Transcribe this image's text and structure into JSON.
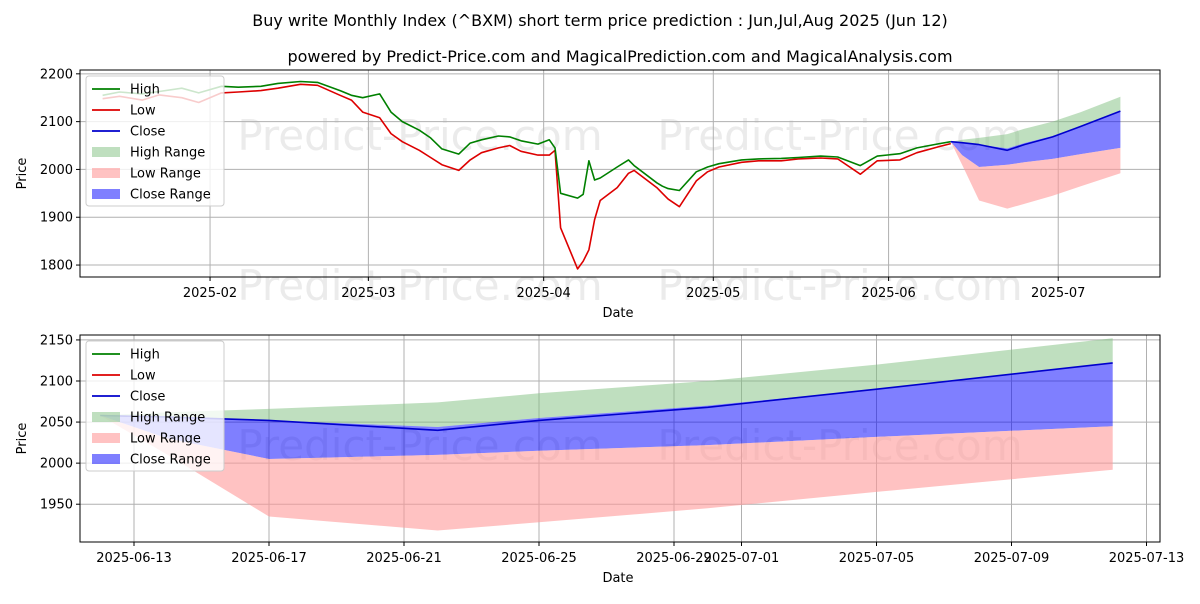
{
  "title": "Buy write Monthly Index (^BXM) short term price prediction : Jun,Jul,Aug 2025 (Jun 12)",
  "subtitle": "powered by Predict-Price.com and MagicalPrediction.com and MagicalAnalysis.com",
  "watermark": "Predict-Price.com",
  "colors": {
    "high": "#008000",
    "low": "#dd0000",
    "close": "#0000cc",
    "high_range": "#7fbf7f",
    "low_range": "#ff9999",
    "close_range": "#0000ff"
  },
  "legend": [
    "High",
    "Low",
    "Close",
    "High Range",
    "Low Range",
    "Close Range"
  ],
  "chart_data": [
    {
      "type": "line",
      "name": "overview",
      "xlabel": "Date",
      "ylabel": "Price",
      "xlim": [
        "2025-01-09",
        "2025-07-19"
      ],
      "ylim": [
        1775,
        2208
      ],
      "yticks": [
        1800,
        1900,
        2000,
        2100,
        2200
      ],
      "xticks": [
        "2025-02",
        "2025-03",
        "2025-04",
        "2025-05",
        "2025-06",
        "2025-07"
      ],
      "grid": true,
      "legend_position": "upper-left",
      "history": {
        "dates": [
          "2025-01-13",
          "2025-01-16",
          "2025-01-20",
          "2025-01-23",
          "2025-01-27",
          "2025-01-30",
          "2025-02-03",
          "2025-02-06",
          "2025-02-10",
          "2025-02-13",
          "2025-02-17",
          "2025-02-20",
          "2025-02-24",
          "2025-02-26",
          "2025-02-28",
          "2025-03-03",
          "2025-03-05",
          "2025-03-07",
          "2025-03-10",
          "2025-03-12",
          "2025-03-14",
          "2025-03-17",
          "2025-03-19",
          "2025-03-21",
          "2025-03-24",
          "2025-03-26",
          "2025-03-28",
          "2025-03-31",
          "2025-04-02",
          "2025-04-03",
          "2025-04-04",
          "2025-04-07",
          "2025-04-08",
          "2025-04-09",
          "2025-04-10",
          "2025-04-11",
          "2025-04-14",
          "2025-04-16",
          "2025-04-17",
          "2025-04-21",
          "2025-04-22",
          "2025-04-23",
          "2025-04-25",
          "2025-04-28",
          "2025-04-30",
          "2025-05-02",
          "2025-05-06",
          "2025-05-09",
          "2025-05-13",
          "2025-05-16",
          "2025-05-20",
          "2025-05-23",
          "2025-05-27",
          "2025-05-30",
          "2025-06-03",
          "2025-06-06",
          "2025-06-10",
          "2025-06-12"
        ],
        "high": [
          2155,
          2162,
          2158,
          2163,
          2170,
          2160,
          2174,
          2172,
          2174,
          2180,
          2184,
          2182,
          2165,
          2155,
          2150,
          2158,
          2120,
          2100,
          2082,
          2066,
          2043,
          2032,
          2055,
          2062,
          2070,
          2068,
          2060,
          2053,
          2062,
          2045,
          1950,
          1940,
          1948,
          2018,
          1978,
          1982,
          2005,
          2020,
          2008,
          1972,
          1965,
          1960,
          1956,
          1995,
          2005,
          2012,
          2020,
          2022,
          2023,
          2025,
          2028,
          2026,
          2008,
          2028,
          2033,
          2045,
          2054,
          2058
        ],
        "low": [
          2148,
          2153,
          2145,
          2156,
          2150,
          2140,
          2160,
          2162,
          2165,
          2170,
          2178,
          2176,
          2155,
          2145,
          2120,
          2108,
          2075,
          2058,
          2040,
          2025,
          2010,
          1998,
          2020,
          2035,
          2045,
          2050,
          2038,
          2030,
          2030,
          2040,
          1878,
          1792,
          1808,
          1832,
          1895,
          1935,
          1962,
          1992,
          1998,
          1962,
          1950,
          1938,
          1922,
          1976,
          1995,
          2005,
          2015,
          2018,
          2018,
          2022,
          2024,
          2022,
          1990,
          2018,
          2020,
          2035,
          2048,
          2054
        ]
      },
      "forecast": {
        "dates": [
          "2025-06-12",
          "2025-06-14",
          "2025-06-17",
          "2025-06-22",
          "2025-06-25",
          "2025-06-30",
          "2025-07-05",
          "2025-07-12"
        ],
        "high": [
          2058,
          2062,
          2066,
          2074,
          2085,
          2100,
          2120,
          2152
        ],
        "low": [
          2058,
          2010,
          1935,
          1918,
          1928,
          1945,
          1965,
          1992
        ],
        "close_upper": [
          2058,
          2055,
          2052,
          2044,
          2055,
          2070,
          2090,
          2122
        ],
        "close_lower": [
          2058,
          2030,
          2005,
          2010,
          2015,
          2022,
          2032,
          2045
        ],
        "close": [
          2058,
          2056,
          2052,
          2040,
          2052,
          2068,
          2090,
          2122
        ]
      }
    },
    {
      "type": "line",
      "name": "forecast-detail",
      "xlabel": "Date",
      "ylabel": "Price",
      "xlim": [
        "2025-06-11.4",
        "2025-07-13.4"
      ],
      "ylim": [
        1904,
        2156
      ],
      "yticks": [
        1950,
        2000,
        2050,
        2100,
        2150
      ],
      "xticks": [
        "2025-06-13",
        "2025-06-17",
        "2025-06-21",
        "2025-06-25",
        "2025-06-29",
        "2025-07-01",
        "2025-07-05",
        "2025-07-09",
        "2025-07-13"
      ],
      "grid": true,
      "legend_position": "upper-left",
      "forecast": {
        "dates": [
          "2025-06-12",
          "2025-06-14",
          "2025-06-17",
          "2025-06-22",
          "2025-06-25",
          "2025-06-30",
          "2025-07-05",
          "2025-07-12"
        ],
        "high": [
          2058,
          2062,
          2066,
          2074,
          2085,
          2100,
          2120,
          2152
        ],
        "low": [
          2058,
          2010,
          1935,
          1918,
          1928,
          1945,
          1965,
          1992
        ],
        "close_upper": [
          2058,
          2055,
          2052,
          2044,
          2055,
          2070,
          2090,
          2122
        ],
        "close_lower": [
          2058,
          2030,
          2005,
          2010,
          2015,
          2022,
          2032,
          2045
        ],
        "close": [
          2058,
          2056,
          2052,
          2040,
          2052,
          2068,
          2090,
          2122
        ]
      }
    }
  ]
}
